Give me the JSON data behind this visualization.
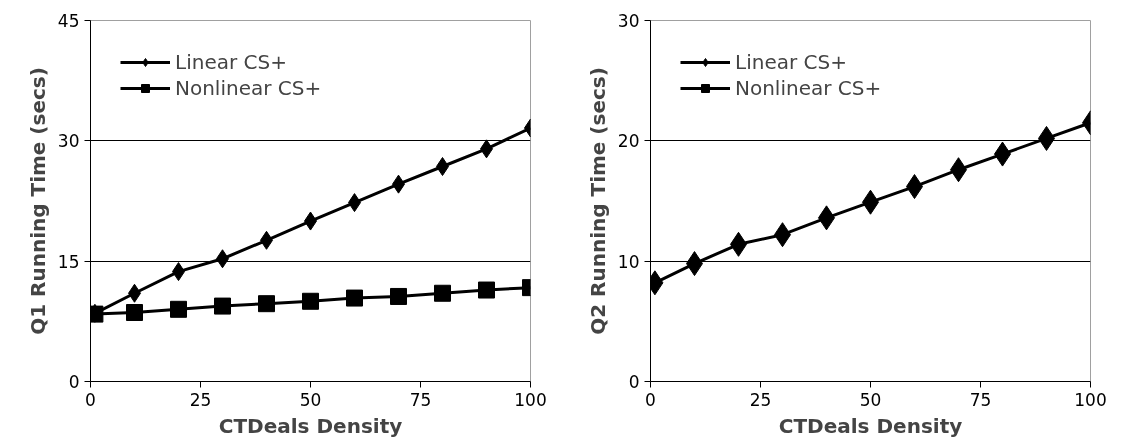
{
  "chart_data": [
    {
      "type": "line",
      "xlabel": "CTDeals Density",
      "ylabel": "Q1 Running Time (secs)",
      "x": [
        1,
        10,
        20,
        30,
        40,
        50,
        60,
        70,
        80,
        90,
        100
      ],
      "xlim": [
        0,
        100
      ],
      "xticks": [
        0,
        25,
        50,
        75,
        100
      ],
      "ylim": [
        0,
        45
      ],
      "yticks": [
        0,
        15,
        30,
        45
      ],
      "grid": "y",
      "legend": "top left",
      "series": [
        {
          "name": "Linear CS+",
          "color": "#000000",
          "marker": "diamond",
          "values": [
            8.5,
            11.0,
            13.7,
            15.3,
            17.6,
            20.0,
            22.3,
            24.6,
            26.8,
            29.0,
            31.6
          ]
        },
        {
          "name": "Nonlinear CS+",
          "color": "#000000",
          "marker": "square",
          "values": [
            8.4,
            8.6,
            9.0,
            9.4,
            9.7,
            10.0,
            10.4,
            10.6,
            11.0,
            11.4,
            11.7
          ]
        }
      ]
    },
    {
      "type": "line",
      "xlabel": "CTDeals Density",
      "ylabel": "Q2 Running Time (secs)",
      "x": [
        1,
        10,
        20,
        30,
        40,
        50,
        60,
        70,
        80,
        90,
        100
      ],
      "xlim": [
        0,
        100
      ],
      "xticks": [
        0,
        25,
        50,
        75,
        100
      ],
      "ylim": [
        0,
        30
      ],
      "yticks": [
        0,
        10,
        20,
        30
      ],
      "grid": "y",
      "legend": "top left",
      "series": [
        {
          "name": "Linear CS+",
          "color": "#000000",
          "marker": "diamond",
          "values": [
            8.2,
            9.8,
            11.4,
            12.2,
            13.6,
            14.9,
            16.2,
            17.6,
            18.9,
            20.2,
            21.5
          ]
        },
        {
          "name": "Nonlinear CS+",
          "color": "#000000",
          "marker": "square",
          "values": [
            null,
            null,
            null,
            null,
            null,
            null,
            null,
            null,
            null,
            null,
            null
          ]
        }
      ]
    }
  ]
}
